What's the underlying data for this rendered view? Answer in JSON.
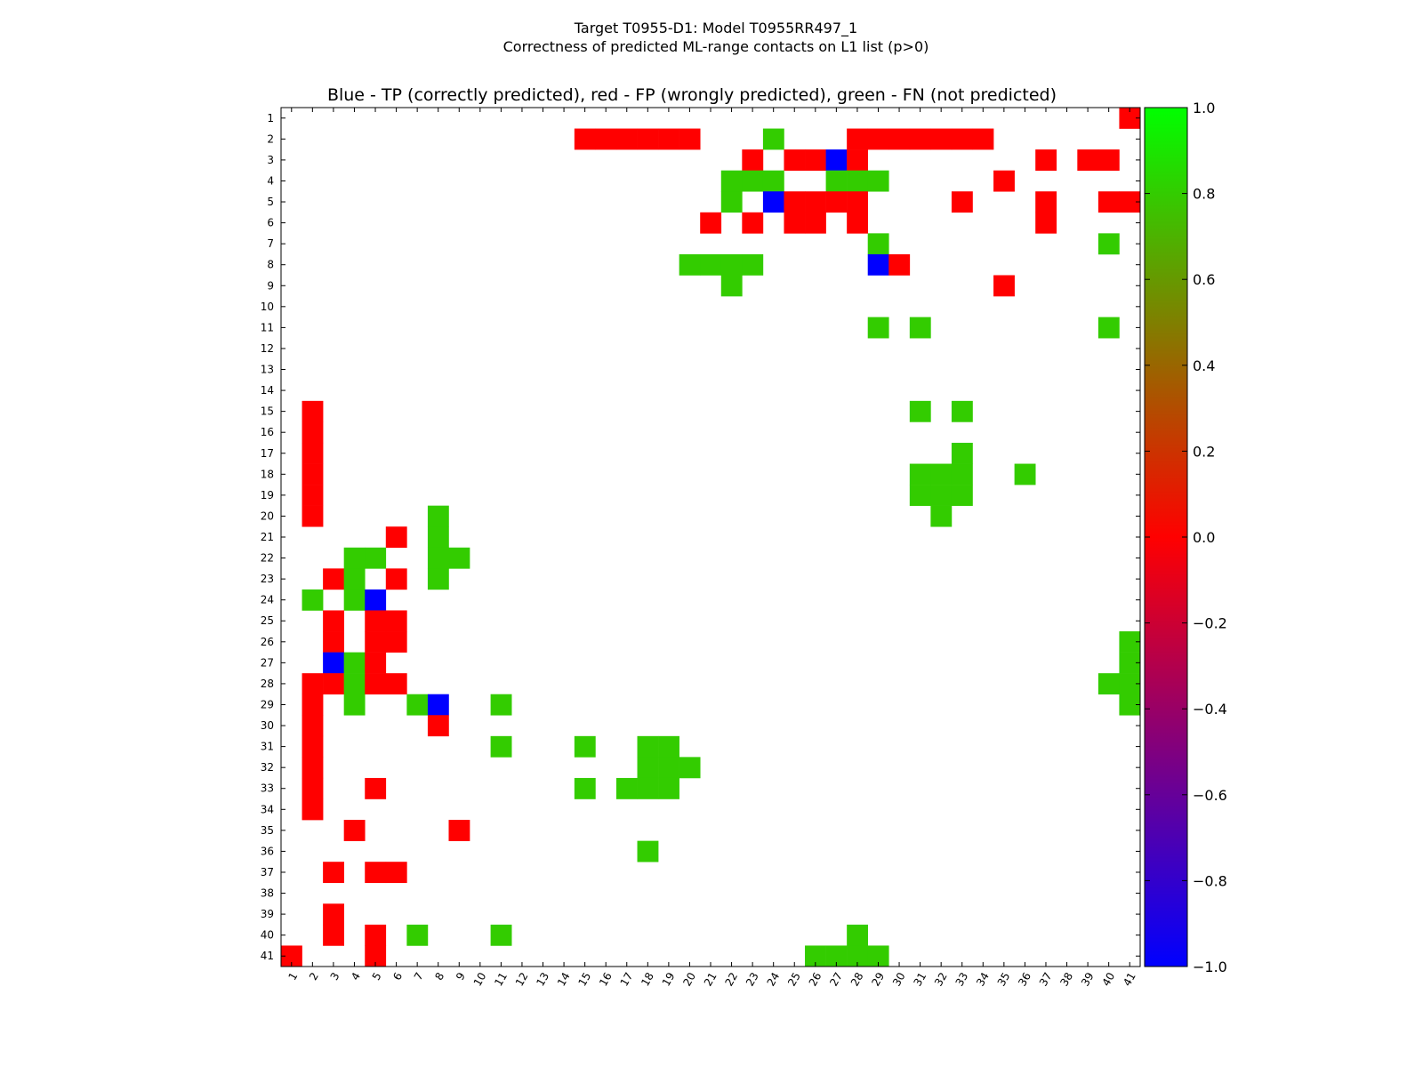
{
  "chart_data": {
    "type": "heatmap",
    "title_lines": [
      "Target T0955-D1: Model T0955RR497_1",
      "Correctness of predicted ML-range contacts on L1 list (p>0)"
    ],
    "plot_title": "Blue - TP (correctly predicted), red - FP (wrongly predicted), green - FN (not predicted)",
    "xlabel": "",
    "ylabel": "",
    "x_ticks": [
      "1",
      "2",
      "3",
      "4",
      "5",
      "6",
      "7",
      "8",
      "9",
      "10",
      "11",
      "12",
      "13",
      "14",
      "15",
      "16",
      "17",
      "18",
      "19",
      "20",
      "21",
      "22",
      "23",
      "24",
      "25",
      "26",
      "27",
      "28",
      "29",
      "30",
      "31",
      "32",
      "33",
      "34",
      "35",
      "36",
      "37",
      "38",
      "39",
      "40",
      "41"
    ],
    "y_ticks": [
      "1",
      "2",
      "3",
      "4",
      "5",
      "6",
      "7",
      "8",
      "9",
      "10",
      "11",
      "12",
      "13",
      "14",
      "15",
      "16",
      "17",
      "18",
      "19",
      "20",
      "21",
      "22",
      "23",
      "24",
      "25",
      "26",
      "27",
      "28",
      "29",
      "30",
      "31",
      "32",
      "33",
      "34",
      "35",
      "36",
      "37",
      "38",
      "39",
      "40",
      "41"
    ],
    "value_legend": {
      "-1": "TP (blue)",
      "0": "FP (red)",
      "1": "FN (green)"
    },
    "colorbar": {
      "min": -1.0,
      "max": 1.0,
      "ticks": [
        "1.0",
        "0.8",
        "0.6",
        "0.4",
        "0.2",
        "0.0",
        "−0.2",
        "−0.4",
        "−0.6",
        "−0.8",
        "−1.0"
      ],
      "colors": [
        "#0000ff",
        "#ff0000",
        "#00ff00"
      ]
    },
    "cell_colors": {
      "tp": "#0000ff",
      "fp": "#ff0000",
      "fn": "#33cc00"
    },
    "cells": [
      [
        1,
        41,
        0
      ],
      [
        2,
        15,
        0
      ],
      [
        2,
        16,
        0
      ],
      [
        2,
        17,
        0
      ],
      [
        2,
        18,
        0
      ],
      [
        2,
        19,
        0
      ],
      [
        2,
        20,
        0
      ],
      [
        2,
        24,
        1
      ],
      [
        2,
        28,
        0
      ],
      [
        2,
        29,
        0
      ],
      [
        2,
        30,
        0
      ],
      [
        2,
        31,
        0
      ],
      [
        2,
        32,
        0
      ],
      [
        2,
        33,
        0
      ],
      [
        2,
        34,
        0
      ],
      [
        3,
        23,
        0
      ],
      [
        3,
        25,
        0
      ],
      [
        3,
        26,
        0
      ],
      [
        3,
        27,
        -1
      ],
      [
        3,
        28,
        0
      ],
      [
        3,
        37,
        0
      ],
      [
        3,
        39,
        0
      ],
      [
        3,
        40,
        0
      ],
      [
        4,
        22,
        1
      ],
      [
        4,
        23,
        1
      ],
      [
        4,
        24,
        1
      ],
      [
        4,
        27,
        1
      ],
      [
        4,
        28,
        1
      ],
      [
        4,
        29,
        1
      ],
      [
        4,
        35,
        0
      ],
      [
        5,
        22,
        1
      ],
      [
        5,
        24,
        -1
      ],
      [
        5,
        25,
        0
      ],
      [
        5,
        26,
        0
      ],
      [
        5,
        27,
        0
      ],
      [
        5,
        28,
        0
      ],
      [
        5,
        33,
        0
      ],
      [
        5,
        37,
        0
      ],
      [
        5,
        40,
        0
      ],
      [
        5,
        41,
        0
      ],
      [
        6,
        21,
        0
      ],
      [
        6,
        23,
        0
      ],
      [
        6,
        25,
        0
      ],
      [
        6,
        26,
        0
      ],
      [
        6,
        28,
        0
      ],
      [
        6,
        37,
        0
      ],
      [
        7,
        29,
        1
      ],
      [
        7,
        40,
        1
      ],
      [
        8,
        20,
        1
      ],
      [
        8,
        21,
        1
      ],
      [
        8,
        22,
        1
      ],
      [
        8,
        23,
        1
      ],
      [
        8,
        29,
        -1
      ],
      [
        8,
        30,
        0
      ],
      [
        9,
        22,
        1
      ],
      [
        9,
        35,
        0
      ],
      [
        11,
        29,
        1
      ],
      [
        11,
        31,
        1
      ],
      [
        11,
        40,
        1
      ],
      [
        15,
        2,
        0
      ],
      [
        15,
        31,
        1
      ],
      [
        15,
        33,
        1
      ],
      [
        16,
        2,
        0
      ],
      [
        17,
        2,
        0
      ],
      [
        17,
        33,
        1
      ],
      [
        18,
        2,
        0
      ],
      [
        18,
        31,
        1
      ],
      [
        18,
        32,
        1
      ],
      [
        18,
        33,
        1
      ],
      [
        18,
        36,
        1
      ],
      [
        19,
        2,
        0
      ],
      [
        19,
        31,
        1
      ],
      [
        19,
        32,
        1
      ],
      [
        19,
        33,
        1
      ],
      [
        20,
        2,
        0
      ],
      [
        20,
        8,
        1
      ],
      [
        20,
        32,
        1
      ],
      [
        21,
        6,
        0
      ],
      [
        21,
        8,
        1
      ],
      [
        22,
        4,
        1
      ],
      [
        22,
        5,
        1
      ],
      [
        22,
        8,
        1
      ],
      [
        22,
        9,
        1
      ],
      [
        23,
        3,
        0
      ],
      [
        23,
        4,
        1
      ],
      [
        23,
        6,
        0
      ],
      [
        23,
        8,
        1
      ],
      [
        24,
        2,
        1
      ],
      [
        24,
        4,
        1
      ],
      [
        24,
        5,
        -1
      ],
      [
        25,
        3,
        0
      ],
      [
        25,
        5,
        0
      ],
      [
        25,
        6,
        0
      ],
      [
        26,
        3,
        0
      ],
      [
        26,
        5,
        0
      ],
      [
        26,
        6,
        0
      ],
      [
        26,
        41,
        1
      ],
      [
        27,
        3,
        -1
      ],
      [
        27,
        4,
        1
      ],
      [
        27,
        5,
        0
      ],
      [
        27,
        41,
        1
      ],
      [
        28,
        2,
        0
      ],
      [
        28,
        3,
        0
      ],
      [
        28,
        4,
        1
      ],
      [
        28,
        5,
        0
      ],
      [
        28,
        6,
        0
      ],
      [
        28,
        40,
        1
      ],
      [
        28,
        41,
        1
      ],
      [
        29,
        2,
        0
      ],
      [
        29,
        4,
        1
      ],
      [
        29,
        7,
        1
      ],
      [
        29,
        8,
        -1
      ],
      [
        29,
        11,
        1
      ],
      [
        29,
        41,
        1
      ],
      [
        30,
        2,
        0
      ],
      [
        30,
        8,
        0
      ],
      [
        31,
        2,
        0
      ],
      [
        31,
        11,
        1
      ],
      [
        31,
        15,
        1
      ],
      [
        31,
        18,
        1
      ],
      [
        31,
        19,
        1
      ],
      [
        32,
        2,
        0
      ],
      [
        32,
        18,
        1
      ],
      [
        32,
        19,
        1
      ],
      [
        32,
        20,
        1
      ],
      [
        33,
        2,
        0
      ],
      [
        33,
        5,
        0
      ],
      [
        33,
        15,
        1
      ],
      [
        33,
        17,
        1
      ],
      [
        33,
        18,
        1
      ],
      [
        33,
        19,
        1
      ],
      [
        34,
        2,
        0
      ],
      [
        35,
        4,
        0
      ],
      [
        35,
        9,
        0
      ],
      [
        36,
        18,
        1
      ],
      [
        37,
        3,
        0
      ],
      [
        37,
        5,
        0
      ],
      [
        37,
        6,
        0
      ],
      [
        39,
        3,
        0
      ],
      [
        40,
        3,
        0
      ],
      [
        40,
        5,
        0
      ],
      [
        40,
        7,
        1
      ],
      [
        40,
        11,
        1
      ],
      [
        40,
        28,
        1
      ],
      [
        41,
        1,
        0
      ],
      [
        41,
        5,
        0
      ],
      [
        41,
        26,
        1
      ],
      [
        41,
        27,
        1
      ],
      [
        41,
        28,
        1
      ],
      [
        41,
        29,
        1
      ]
    ]
  }
}
